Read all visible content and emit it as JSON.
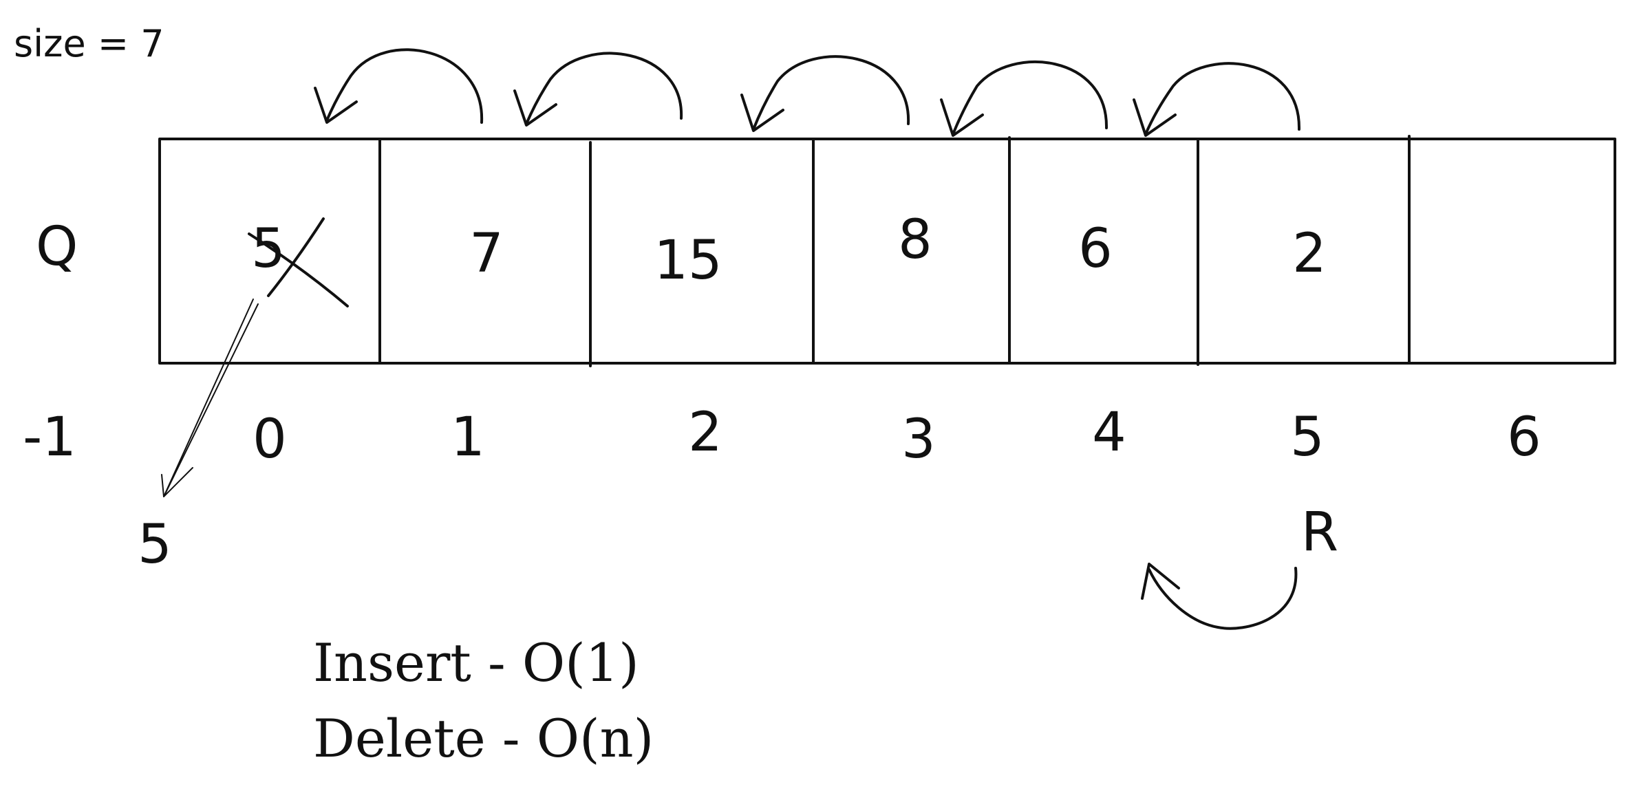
{
  "size_label": "size = 7",
  "queue_label": "Q",
  "queue": {
    "cells": [
      "5",
      "7",
      "15",
      "8",
      "6",
      "2",
      ""
    ],
    "indices": [
      "0",
      "1",
      "2",
      "3",
      "4",
      "5",
      "6"
    ],
    "front_index_label": "-1",
    "dequeued_value": "5",
    "rear_label": "R"
  },
  "complexity": {
    "insert": "Insert - O(1)",
    "delete": "Delete - O(n)"
  }
}
